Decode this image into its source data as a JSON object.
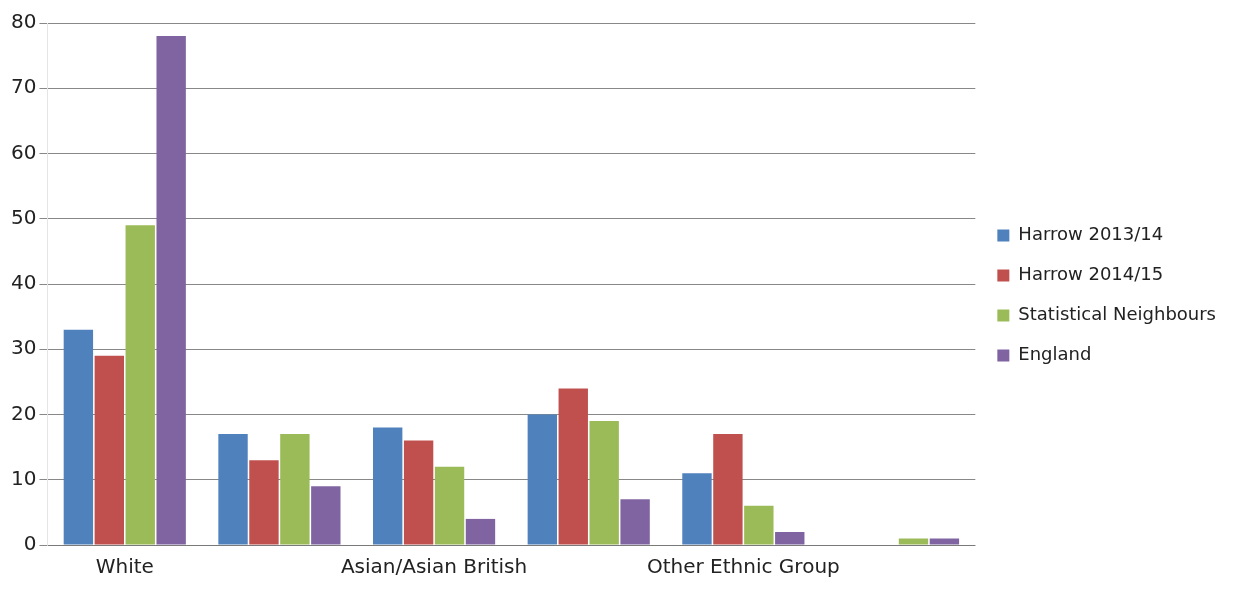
{
  "chart_data": {
    "type": "bar",
    "categories": [
      "White",
      null,
      "Asian/Asian British",
      null,
      "Other Ethnic Group",
      null
    ],
    "series": [
      {
        "name": "Harrow 2013/14",
        "color": "#4f81bd",
        "values": [
          33,
          17,
          18,
          20,
          11,
          0
        ]
      },
      {
        "name": "Harrow 2014/15",
        "color": "#c0504d",
        "values": [
          29,
          13,
          16,
          24,
          17,
          0
        ]
      },
      {
        "name": "Statistical Neighbours",
        "color": "#9bbb59",
        "values": [
          49,
          17,
          12,
          19,
          6,
          1
        ]
      },
      {
        "name": "England",
        "color": "#8064a2",
        "values": [
          78,
          9,
          4,
          7,
          2,
          1
        ]
      }
    ],
    "ylim": [
      0,
      80
    ],
    "yticks": [
      0,
      10,
      20,
      30,
      40,
      50,
      60,
      70,
      80
    ],
    "grid": "y",
    "legend": "right"
  }
}
